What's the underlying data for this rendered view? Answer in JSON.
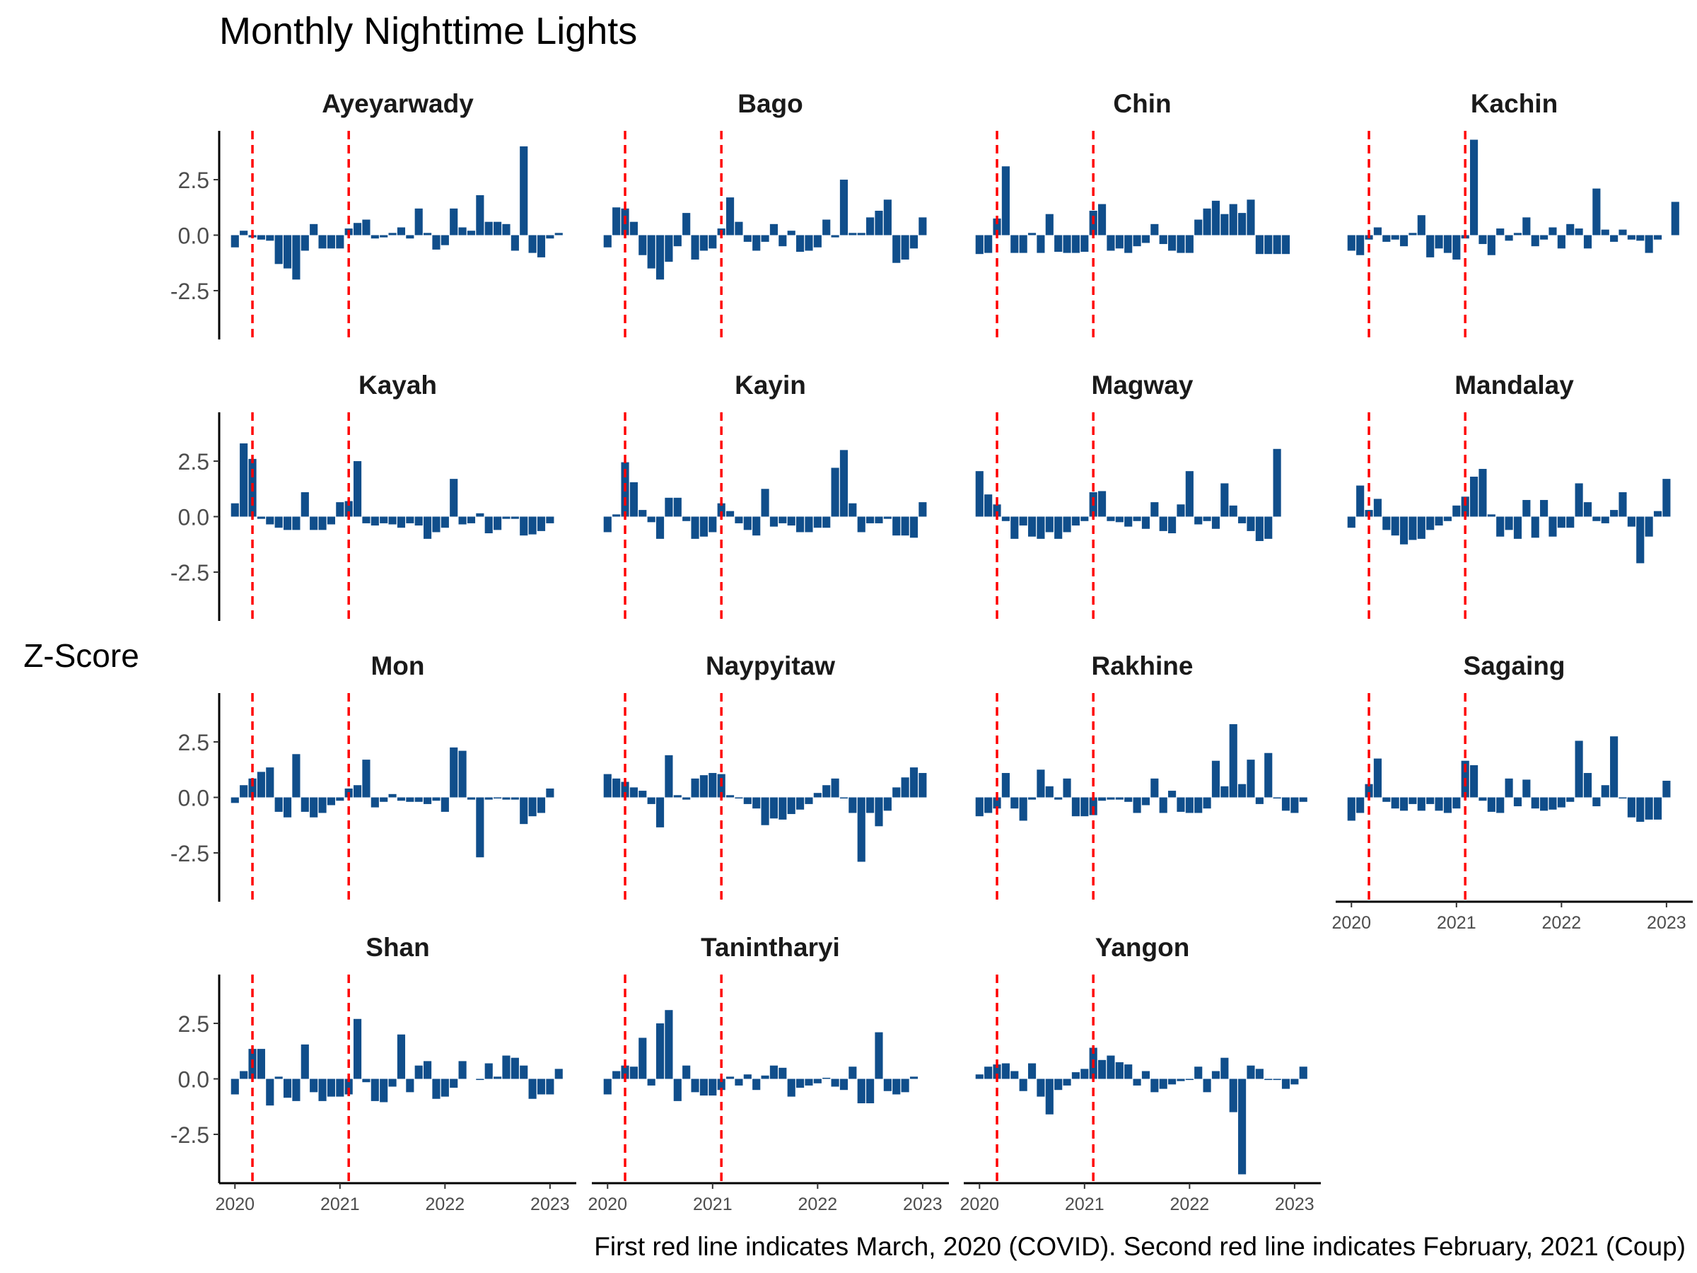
{
  "chart_data": {
    "type": "bar",
    "title": "Monthly Nighttime Lights",
    "ylabel": "Z-Score",
    "xlabel": "",
    "caption": "First red line indicates March, 2020 (COVID). Second red line indicates February, 2021 (Coup)",
    "ylim": [
      -4.7,
      4.7
    ],
    "xlim": [
      2019.85,
      2023.25
    ],
    "yticks": [
      2.5,
      0.0,
      -2.5
    ],
    "ytick_labels": [
      "2.5",
      "0.0",
      "-2.5"
    ],
    "xticks": [
      2020,
      2021,
      2022,
      2023
    ],
    "xtick_labels": [
      "2020",
      "2021",
      "2022",
      "2023"
    ],
    "vlines": [
      {
        "label": "March, 2020 (COVID)",
        "x": 2020.1667
      },
      {
        "label": "February, 2021 (Coup)",
        "x": 2021.0833
      }
    ],
    "months": [
      "2020-01",
      "2020-02",
      "2020-03",
      "2020-04",
      "2020-05",
      "2020-06",
      "2020-07",
      "2020-08",
      "2020-09",
      "2020-10",
      "2020-11",
      "2020-12",
      "2021-01",
      "2021-02",
      "2021-03",
      "2021-04",
      "2021-05",
      "2021-06",
      "2021-07",
      "2021-08",
      "2021-09",
      "2021-10",
      "2021-11",
      "2021-12",
      "2022-01",
      "2022-02",
      "2022-03",
      "2022-04",
      "2022-05",
      "2022-06",
      "2022-07",
      "2022-08",
      "2022-09",
      "2022-10",
      "2022-11",
      "2022-12",
      "2023-01",
      "2023-02"
    ],
    "bar_color": "#104e8b",
    "line_color": "#ff0000",
    "panels": [
      {
        "name": "Ayeyarwady",
        "values": [
          -0.55,
          0.2,
          -0.1,
          -0.2,
          -0.25,
          -1.3,
          -1.5,
          -2.0,
          -0.7,
          0.5,
          -0.6,
          -0.6,
          -0.6,
          0.3,
          0.55,
          0.7,
          -0.15,
          -0.1,
          0.1,
          0.35,
          -0.15,
          1.2,
          0.1,
          -0.65,
          -0.45,
          1.2,
          0.35,
          0.2,
          1.8,
          0.6,
          0.6,
          0.5,
          -0.7,
          4.0,
          -0.8,
          -1.0,
          -0.15,
          0.1
        ]
      },
      {
        "name": "Bago",
        "values": [
          -0.55,
          1.25,
          1.2,
          0.6,
          -0.9,
          -1.5,
          -2.0,
          -1.2,
          -0.5,
          1.0,
          -1.1,
          -0.7,
          -0.6,
          0.3,
          1.7,
          0.6,
          -0.3,
          -0.7,
          -0.3,
          0.5,
          -0.5,
          0.2,
          -0.75,
          -0.7,
          -0.55,
          0.7,
          -0.1,
          2.5,
          0.1,
          0.1,
          0.8,
          1.1,
          1.6,
          -1.25,
          -1.1,
          -0.6,
          0.8,
          0.0
        ]
      },
      {
        "name": "Chin",
        "values": [
          -0.85,
          -0.8,
          0.75,
          3.1,
          -0.8,
          -0.8,
          0.1,
          -0.8,
          0.95,
          -0.75,
          -0.8,
          -0.8,
          -0.75,
          1.1,
          1.4,
          -0.7,
          -0.6,
          -0.8,
          -0.5,
          -0.35,
          0.5,
          -0.4,
          -0.7,
          -0.8,
          -0.8,
          0.7,
          1.2,
          1.55,
          0.95,
          1.4,
          1.0,
          1.6,
          -0.85,
          -0.85,
          -0.85,
          -0.85,
          0.0,
          0.0
        ]
      },
      {
        "name": "Kachin",
        "values": [
          -0.7,
          -0.9,
          -0.2,
          0.35,
          -0.3,
          -0.2,
          -0.5,
          0.1,
          0.9,
          -1.0,
          -0.6,
          -0.8,
          -1.1,
          -0.15,
          4.3,
          -0.4,
          -0.9,
          0.3,
          -0.25,
          0.1,
          0.8,
          -0.5,
          -0.2,
          0.35,
          -0.6,
          0.5,
          0.3,
          -0.6,
          2.1,
          0.25,
          -0.3,
          0.25,
          -0.2,
          -0.25,
          -0.8,
          -0.2,
          0.0,
          1.5
        ]
      },
      {
        "name": "Kayah",
        "values": [
          0.6,
          3.3,
          2.6,
          -0.1,
          -0.35,
          -0.5,
          -0.6,
          -0.6,
          1.1,
          -0.6,
          -0.6,
          -0.35,
          0.65,
          0.7,
          2.5,
          -0.3,
          -0.4,
          -0.3,
          -0.35,
          -0.5,
          -0.3,
          -0.4,
          -1.0,
          -0.7,
          -0.5,
          1.7,
          -0.35,
          -0.3,
          0.15,
          -0.75,
          -0.6,
          -0.1,
          -0.1,
          -0.85,
          -0.8,
          -0.65,
          -0.3,
          0.0
        ]
      },
      {
        "name": "Kayin",
        "values": [
          -0.7,
          0.1,
          2.45,
          1.55,
          0.3,
          -0.25,
          -1.0,
          0.85,
          0.85,
          -0.2,
          -1.0,
          -0.9,
          -0.7,
          0.6,
          0.25,
          -0.3,
          -0.6,
          -0.85,
          1.25,
          -0.45,
          -0.3,
          -0.4,
          -0.7,
          -0.7,
          -0.5,
          -0.5,
          2.2,
          3.0,
          0.6,
          -0.7,
          -0.3,
          -0.3,
          -0.1,
          -0.85,
          -0.85,
          -0.95,
          0.65,
          0.0
        ]
      },
      {
        "name": "Magway",
        "values": [
          2.05,
          1.0,
          0.55,
          -0.2,
          -1.0,
          -0.4,
          -0.9,
          -1.0,
          -0.7,
          -1.0,
          -0.7,
          -0.4,
          -0.2,
          1.1,
          1.15,
          -0.2,
          -0.25,
          -0.45,
          -0.2,
          -0.55,
          0.65,
          -0.65,
          -0.75,
          0.55,
          2.05,
          -0.35,
          -0.2,
          -0.55,
          1.5,
          0.5,
          -0.3,
          -0.65,
          -1.1,
          -1.0,
          3.05,
          0.0,
          0.0,
          0.0
        ]
      },
      {
        "name": "Mandalay",
        "values": [
          -0.5,
          1.4,
          0.3,
          0.8,
          -0.6,
          -0.85,
          -1.25,
          -1.05,
          -1.0,
          -0.6,
          -0.4,
          -0.2,
          0.5,
          0.9,
          1.8,
          2.15,
          0.1,
          -0.9,
          -0.6,
          -1.0,
          0.75,
          -0.95,
          0.75,
          -0.9,
          -0.5,
          -0.5,
          1.5,
          0.65,
          -0.2,
          -0.3,
          0.3,
          1.1,
          -0.45,
          -2.1,
          -0.9,
          0.25,
          1.7,
          0.0
        ]
      },
      {
        "name": "Mon",
        "values": [
          -0.25,
          0.55,
          0.85,
          1.15,
          1.35,
          -0.65,
          -0.9,
          1.95,
          -0.65,
          -0.9,
          -0.7,
          -0.35,
          -0.15,
          0.4,
          0.55,
          1.7,
          -0.45,
          -0.2,
          0.15,
          -0.15,
          -0.2,
          -0.2,
          -0.3,
          -0.15,
          -0.65,
          2.25,
          2.1,
          -0.1,
          -2.7,
          -0.1,
          -0.05,
          -0.1,
          -0.1,
          -1.2,
          -0.85,
          -0.7,
          0.4,
          0.0
        ]
      },
      {
        "name": "Naypyitaw",
        "values": [
          1.05,
          0.85,
          0.7,
          0.45,
          0.3,
          -0.3,
          -1.35,
          1.9,
          0.1,
          -0.1,
          0.85,
          1.0,
          1.1,
          1.05,
          0.1,
          -0.05,
          -0.3,
          -0.5,
          -1.25,
          -0.95,
          -1.0,
          -0.75,
          -0.55,
          -0.3,
          0.2,
          0.55,
          0.85,
          -0.05,
          -0.7,
          -2.9,
          -0.7,
          -1.3,
          -0.6,
          0.45,
          0.9,
          1.35,
          1.1,
          0.0
        ]
      },
      {
        "name": "Rakhine",
        "values": [
          -0.85,
          -0.7,
          -0.5,
          1.1,
          -0.5,
          -1.05,
          -0.1,
          1.25,
          0.5,
          -0.1,
          0.85,
          -0.85,
          -0.85,
          -0.8,
          -0.15,
          -0.1,
          -0.1,
          -0.2,
          -0.7,
          -0.35,
          0.85,
          -0.7,
          0.3,
          -0.65,
          -0.7,
          -0.7,
          -0.5,
          1.65,
          0.5,
          3.3,
          0.6,
          1.7,
          -0.3,
          2.0,
          -0.05,
          -0.6,
          -0.7,
          -0.2
        ]
      },
      {
        "name": "Sagaing",
        "values": [
          -1.05,
          -0.7,
          0.6,
          1.75,
          -0.2,
          -0.5,
          -0.6,
          -0.3,
          -0.6,
          -0.3,
          -0.6,
          -0.7,
          -0.5,
          1.65,
          1.45,
          -0.15,
          -0.65,
          -0.7,
          0.85,
          -0.4,
          0.8,
          -0.5,
          -0.6,
          -0.55,
          -0.45,
          -0.2,
          2.55,
          1.1,
          -0.4,
          0.55,
          2.75,
          -0.05,
          -0.9,
          -1.1,
          -1.0,
          -1.0,
          0.75,
          0.0
        ]
      },
      {
        "name": "Shan",
        "values": [
          -0.7,
          0.35,
          1.35,
          1.35,
          -1.2,
          0.1,
          -0.85,
          -1.0,
          1.55,
          -0.6,
          -1.0,
          -0.8,
          -0.8,
          -0.7,
          2.7,
          -0.15,
          -1.0,
          -1.05,
          -0.35,
          2.0,
          -0.6,
          0.6,
          0.8,
          -0.9,
          -0.8,
          -0.4,
          0.8,
          0.0,
          -0.05,
          0.7,
          0.1,
          1.05,
          0.95,
          0.6,
          -0.9,
          -0.7,
          -0.7,
          0.45
        ]
      },
      {
        "name": "Tanintharyi",
        "values": [
          -0.7,
          0.35,
          0.6,
          0.55,
          1.85,
          -0.3,
          2.5,
          3.1,
          -1.0,
          0.6,
          -0.6,
          -0.75,
          -0.75,
          -0.5,
          0.1,
          -0.3,
          0.2,
          -0.5,
          0.15,
          0.6,
          0.5,
          -0.8,
          -0.4,
          -0.3,
          -0.2,
          0.05,
          -0.35,
          -0.5,
          0.55,
          -1.1,
          -1.1,
          2.1,
          -0.55,
          -0.7,
          -0.6,
          0.1,
          0.0,
          0.0
        ]
      },
      {
        "name": "Yangon",
        "values": [
          0.2,
          0.55,
          0.65,
          0.7,
          0.35,
          -0.55,
          0.7,
          -0.8,
          -1.6,
          -0.5,
          -0.3,
          0.3,
          0.45,
          1.4,
          0.85,
          1.05,
          0.75,
          0.65,
          -0.3,
          0.35,
          -0.6,
          -0.45,
          -0.25,
          -0.1,
          -0.05,
          0.55,
          -0.6,
          0.35,
          0.95,
          -1.5,
          -4.3,
          0.6,
          0.45,
          -0.05,
          -0.05,
          -0.45,
          -0.25,
          0.55
        ]
      }
    ]
  }
}
